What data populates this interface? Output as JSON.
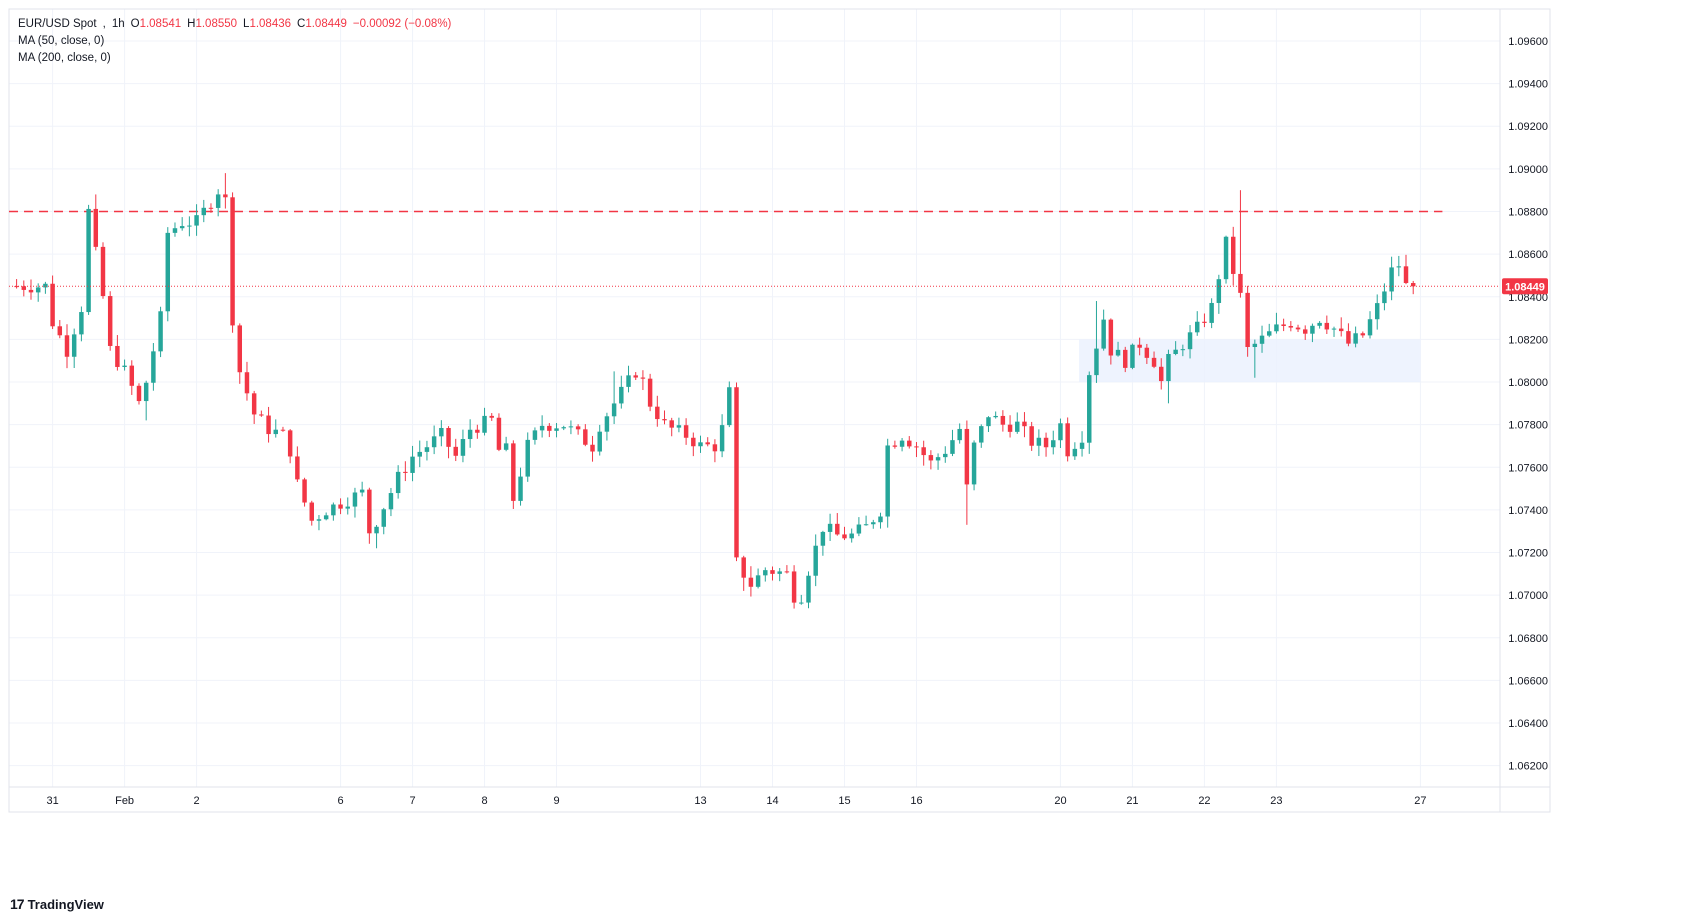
{
  "legend": {
    "symbol": "EUR/USD Spot",
    "interval": "1h",
    "open_label": "O",
    "open": "1.08541",
    "high_label": "H",
    "high": "1.08550",
    "low_label": "L",
    "low": "1.08436",
    "close_label": "C",
    "close": "1.08449",
    "change": "−0.00092 (−0.08%)",
    "ma1": "MA (50, close, 0)",
    "ma2": "MA (200, close, 0)"
  },
  "brand": {
    "logo": "17",
    "name": "TradingView"
  },
  "colors": {
    "up": "#26a69a",
    "down": "#f23645",
    "grid": "#f0f3fa",
    "resistance": "#f23645",
    "zone": "#eaf0fe"
  },
  "chart_data": {
    "type": "candlestick",
    "title": "EUR/USD Spot, 1h",
    "ylim": [
      1.061,
      1.0975
    ],
    "y_ticks": [
      "1.06200",
      "1.06400",
      "1.06600",
      "1.06800",
      "1.07000",
      "1.07200",
      "1.07400",
      "1.07600",
      "1.07800",
      "1.08000",
      "1.08200",
      "1.08400",
      "1.08600",
      "1.08800",
      "1.09000",
      "1.09200",
      "1.09400",
      "1.09600"
    ],
    "x_ticks": [
      {
        "label": "31",
        "i": 5
      },
      {
        "label": "Feb",
        "i": 15
      },
      {
        "label": "2",
        "i": 25
      },
      {
        "label": "6",
        "i": 45
      },
      {
        "label": "7",
        "i": 55
      },
      {
        "label": "8",
        "i": 65
      },
      {
        "label": "9",
        "i": 75
      },
      {
        "label": "13",
        "i": 95
      },
      {
        "label": "14",
        "i": 105
      },
      {
        "label": "15",
        "i": 115
      },
      {
        "label": "16",
        "i": 125
      },
      {
        "label": "20",
        "i": 145
      },
      {
        "label": "21",
        "i": 155
      },
      {
        "label": "22",
        "i": 165
      },
      {
        "label": "23",
        "i": 175
      },
      {
        "label": "27",
        "i": 195
      }
    ],
    "n_slots": 206,
    "last_price": "1.08449",
    "last_price_value": 1.08449,
    "resistance_level": 1.088,
    "zone": {
      "y_low": 1.08,
      "y_high": 1.082,
      "i_start": 148,
      "i_end": 195
    },
    "key_points": [
      [
        0,
        1.0845
      ],
      [
        5,
        1.0845
      ],
      [
        6,
        1.0828
      ],
      [
        8,
        1.0815
      ],
      [
        10,
        1.0835
      ],
      [
        11,
        1.088
      ],
      [
        12,
        1.086
      ],
      [
        13,
        1.084
      ],
      [
        14,
        1.0815
      ],
      [
        16,
        1.0805
      ],
      [
        18,
        1.079
      ],
      [
        19,
        1.08
      ],
      [
        21,
        1.083
      ],
      [
        22,
        1.087
      ],
      [
        24,
        1.0875
      ],
      [
        26,
        1.0875
      ],
      [
        29,
        1.089
      ],
      [
        30,
        1.0885
      ],
      [
        31,
        1.083
      ],
      [
        32,
        1.0805
      ],
      [
        34,
        1.0785
      ],
      [
        36,
        1.0778
      ],
      [
        38,
        1.0775
      ],
      [
        39,
        1.0768
      ],
      [
        40,
        1.0752
      ],
      [
        42,
        1.0735
      ],
      [
        44,
        1.074
      ],
      [
        47,
        1.0745
      ],
      [
        49,
        1.0748
      ],
      [
        50,
        1.073
      ],
      [
        51,
        1.0735
      ],
      [
        54,
        1.0755
      ],
      [
        56,
        1.0765
      ],
      [
        58,
        1.077
      ],
      [
        60,
        1.0775
      ],
      [
        62,
        1.0765
      ],
      [
        64,
        1.0778
      ],
      [
        67,
        1.0782
      ],
      [
        68,
        1.0768
      ],
      [
        69,
        1.0768
      ],
      [
        70,
        1.0745
      ],
      [
        72,
        1.077
      ],
      [
        74,
        1.078
      ],
      [
        77,
        1.078
      ],
      [
        79,
        1.0775
      ],
      [
        81,
        1.077
      ],
      [
        82,
        1.078
      ],
      [
        85,
        1.0795
      ],
      [
        87,
        1.0805
      ],
      [
        88,
        1.08
      ],
      [
        89,
        1.079
      ],
      [
        91,
        1.078
      ],
      [
        92,
        1.0778
      ],
      [
        94,
        1.0775
      ],
      [
        96,
        1.077
      ],
      [
        98,
        1.077
      ],
      [
        99,
        1.0778
      ],
      [
        100,
        1.0795
      ],
      [
        101,
        1.0715
      ],
      [
        103,
        1.0705
      ],
      [
        105,
        1.0712
      ],
      [
        108,
        1.071
      ],
      [
        109,
        1.07
      ],
      [
        110,
        1.07
      ],
      [
        111,
        1.0712
      ],
      [
        113,
        1.0732
      ],
      [
        115,
        1.0728
      ],
      [
        117,
        1.0728
      ],
      [
        119,
        1.0732
      ],
      [
        121,
        1.074
      ],
      [
        122,
        1.077
      ],
      [
        124,
        1.0775
      ],
      [
        126,
        1.077
      ],
      [
        128,
        1.0762
      ],
      [
        130,
        1.0768
      ],
      [
        132,
        1.0778
      ],
      [
        133,
        1.075
      ],
      [
        134,
        1.077
      ],
      [
        136,
        1.0785
      ],
      [
        138,
        1.078
      ],
      [
        140,
        1.078
      ],
      [
        142,
        1.0772
      ],
      [
        144,
        1.077
      ],
      [
        146,
        1.078
      ],
      [
        147,
        1.0768
      ],
      [
        149,
        1.0775
      ],
      [
        150,
        1.0805
      ],
      [
        152,
        1.083
      ],
      [
        153,
        1.0815
      ],
      [
        155,
        1.081
      ],
      [
        157,
        1.0818
      ],
      [
        159,
        1.081
      ],
      [
        160,
        1.08
      ],
      [
        161,
        1.081
      ],
      [
        163,
        1.0818
      ],
      [
        165,
        1.0825
      ],
      [
        167,
        1.0835
      ],
      [
        168,
        1.085
      ],
      [
        169,
        1.0865
      ],
      [
        170,
        1.0852
      ],
      [
        171,
        1.084
      ],
      [
        172,
        1.0815
      ],
      [
        174,
        1.082
      ],
      [
        176,
        1.0825
      ],
      [
        178,
        1.0828
      ],
      [
        180,
        1.0825
      ],
      [
        182,
        1.083
      ],
      [
        184,
        1.0825
      ],
      [
        186,
        1.0818
      ],
      [
        188,
        1.0822
      ],
      [
        190,
        1.0835
      ],
      [
        192,
        1.0852
      ],
      [
        193,
        1.0855
      ],
      [
        194,
        1.0845
      ]
    ],
    "spikes": [
      [
        11,
        1.0888,
        null
      ],
      [
        17,
        null,
        1.0795
      ],
      [
        18,
        null,
        1.0782
      ],
      [
        29,
        1.0898,
        null
      ],
      [
        50,
        null,
        1.0722
      ],
      [
        70,
        null,
        1.0742
      ],
      [
        83,
        1.0805,
        null
      ],
      [
        100,
        1.0798,
        null
      ],
      [
        101,
        null,
        1.0702
      ],
      [
        110,
        null,
        1.0696
      ],
      [
        132,
        null,
        1.0733
      ],
      [
        150,
        1.0838,
        null
      ],
      [
        160,
        null,
        1.079
      ],
      [
        170,
        1.089,
        null
      ],
      [
        172,
        null,
        1.0802
      ]
    ]
  }
}
